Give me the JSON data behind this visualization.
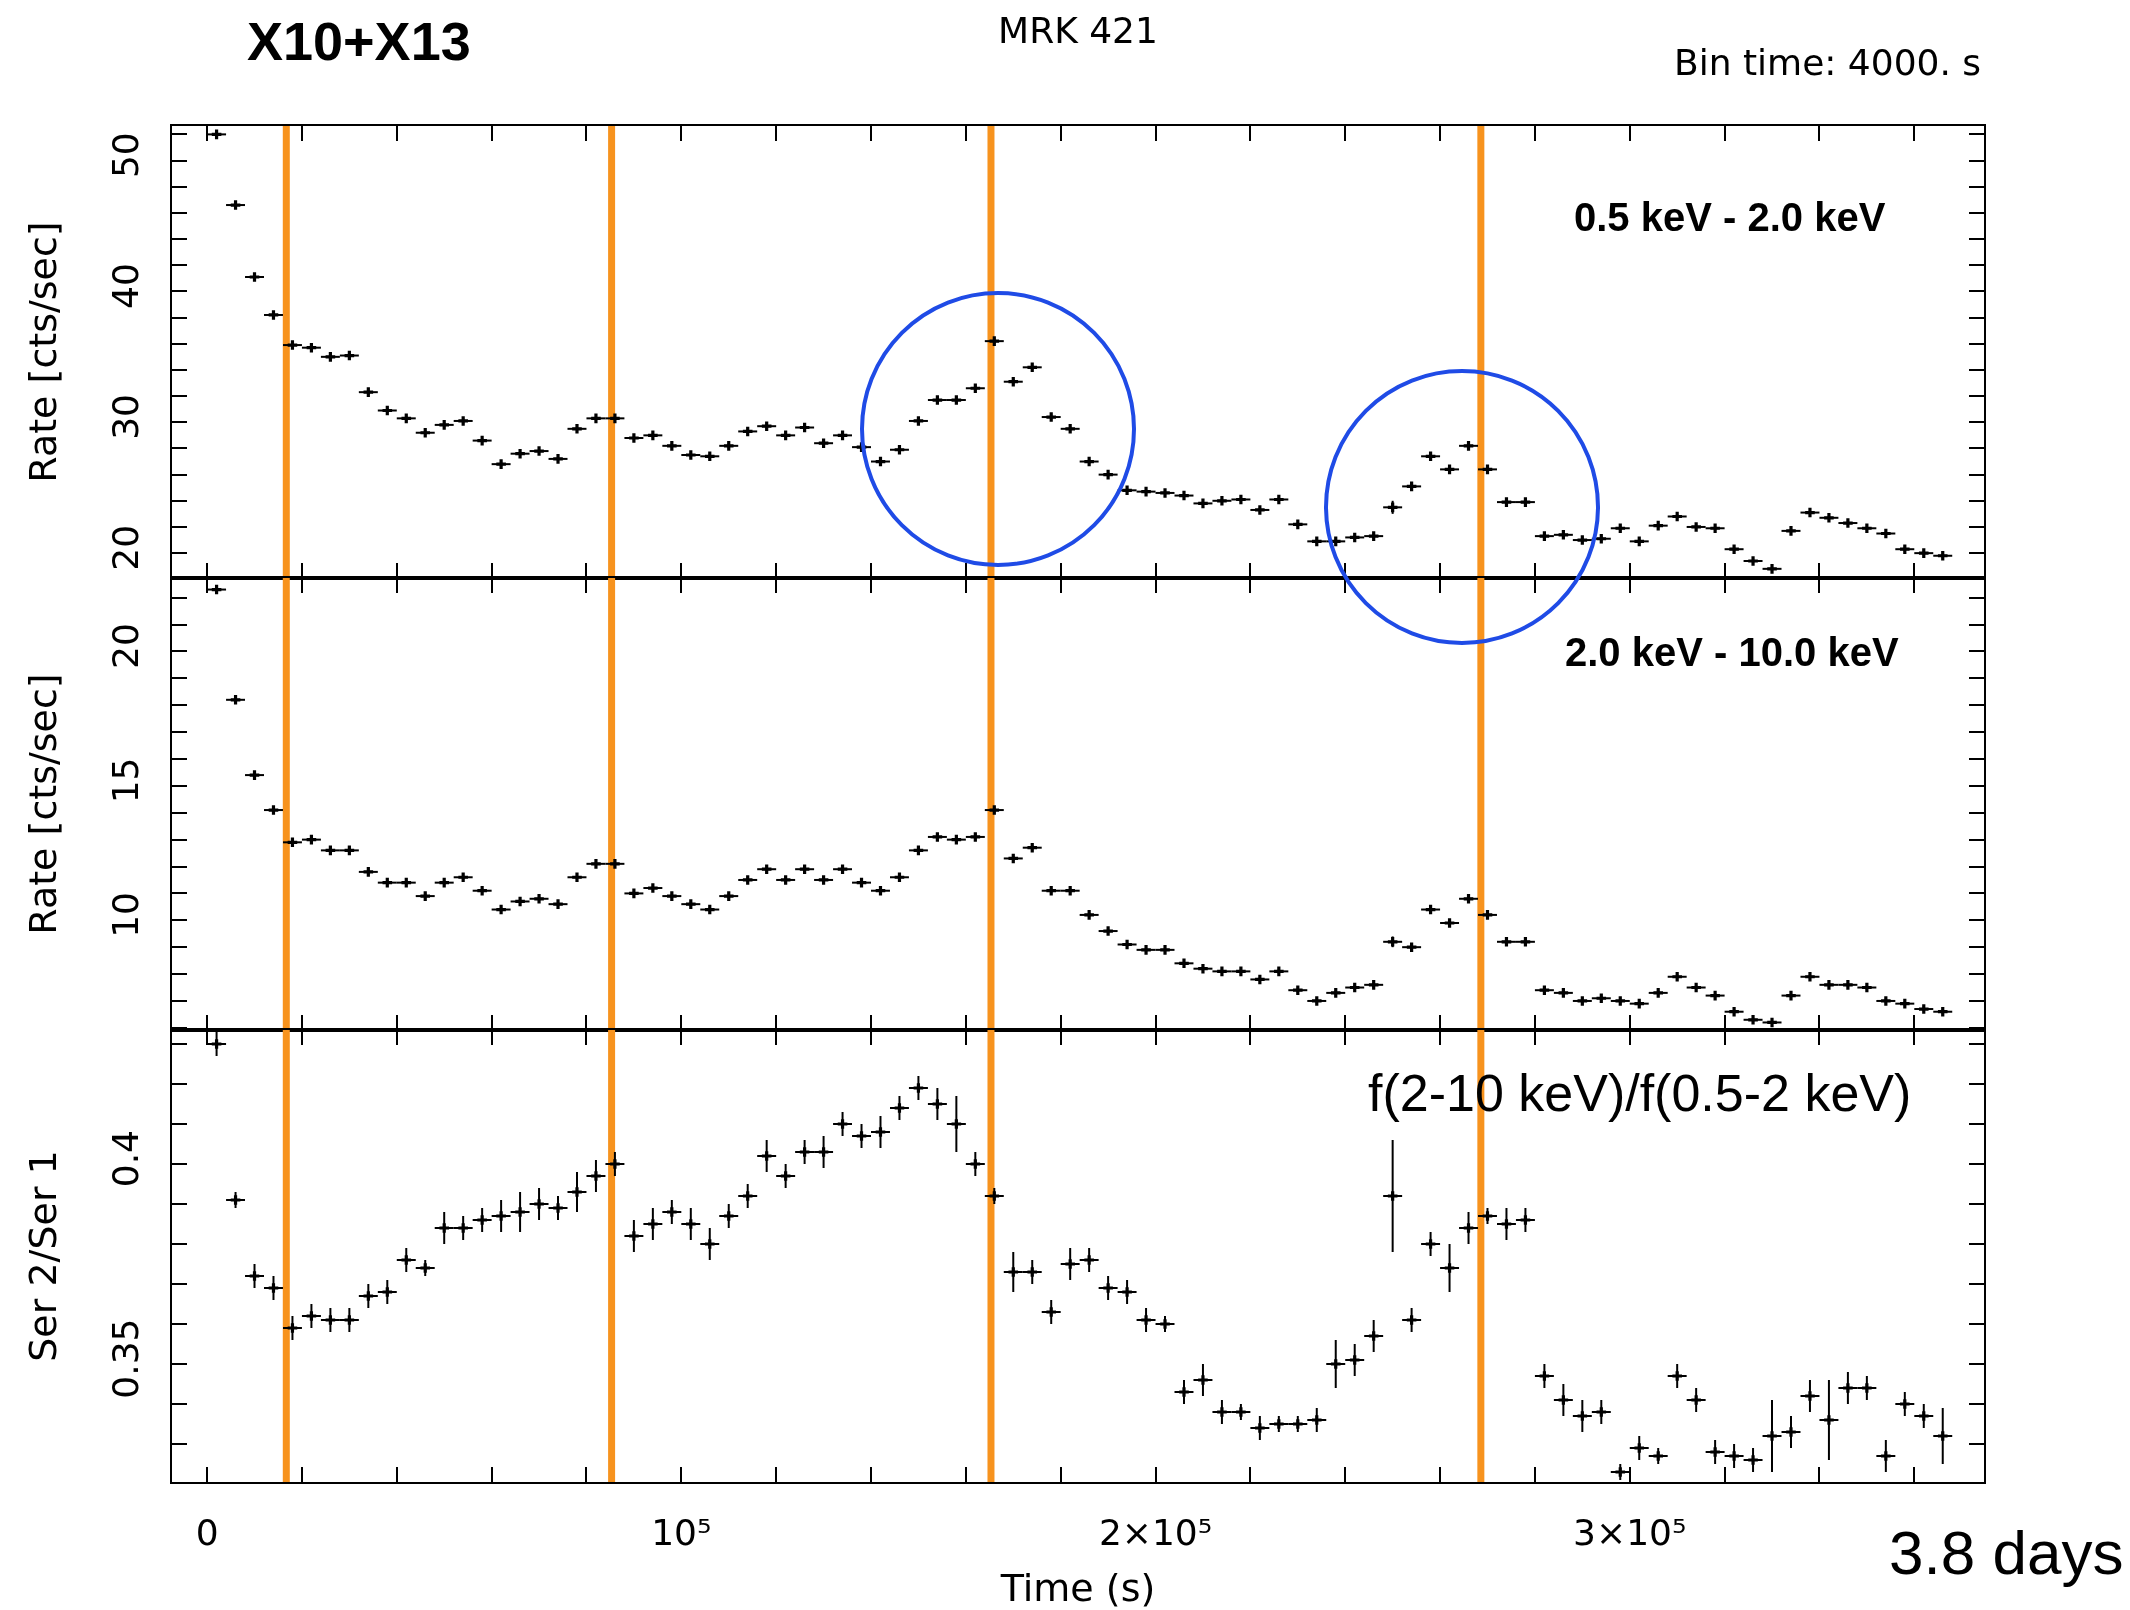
{
  "chart_data": [
    {
      "type": "scatter",
      "title": "MRK 421",
      "ylabel": "Rate [cts/sec]",
      "annotations": [
        "X10+X13",
        "Bin time: 4000. s",
        "0.5 keV - 2.0 keV"
      ],
      "color": "#000000",
      "marker": "cross",
      "tick_labels": "y",
      "xlim": [
        -7400,
        374700
      ],
      "xticks": [
        {
          "value": 0,
          "label": null
        },
        {
          "value": 20000,
          "label": null
        },
        {
          "value": 40000,
          "label": null
        },
        {
          "value": 60000,
          "label": null
        },
        {
          "value": 80000,
          "label": null
        },
        {
          "value": 100000,
          "label": null
        },
        {
          "value": 120000,
          "label": null
        },
        {
          "value": 140000,
          "label": null
        },
        {
          "value": 160000,
          "label": null
        },
        {
          "value": 180000,
          "label": null
        },
        {
          "value": 200000,
          "label": null
        },
        {
          "value": 220000,
          "label": null
        },
        {
          "value": 240000,
          "label": null
        },
        {
          "value": 260000,
          "label": null
        },
        {
          "value": 280000,
          "label": null
        },
        {
          "value": 300000,
          "label": null
        },
        {
          "value": 320000,
          "label": null
        },
        {
          "value": 340000,
          "label": null
        },
        {
          "value": 360000,
          "label": null
        }
      ],
      "ylim": [
        18.1,
        52.64
      ],
      "yticks": [
        20,
        {
          "value": 22,
          "label": null
        },
        {
          "value": 24,
          "label": null
        },
        {
          "value": 26,
          "label": null
        },
        {
          "value": 28,
          "label": null
        },
        30,
        {
          "value": 32,
          "label": null
        },
        {
          "value": 34,
          "label": null
        },
        {
          "value": 36,
          "label": null
        },
        {
          "value": 38,
          "label": null
        },
        40,
        {
          "value": 42,
          "label": null
        },
        {
          "value": 44,
          "label": null
        },
        {
          "value": 46,
          "label": null
        },
        {
          "value": 48,
          "label": null
        },
        50,
        {
          "value": 52,
          "label": null
        }
      ],
      "x": [
        2000,
        6000,
        10000,
        14000,
        18000,
        22000,
        26000,
        30000,
        34000,
        38000,
        42000,
        46000,
        50000,
        54000,
        58000,
        62000,
        66000,
        70000,
        74000,
        78000,
        82000,
        86000,
        90000,
        94000,
        98000,
        102000,
        106000,
        110000,
        114000,
        118000,
        122000,
        126000,
        130000,
        134000,
        138000,
        142000,
        146000,
        150000,
        154000,
        158000,
        162000,
        166000,
        170000,
        174000,
        178000,
        182000,
        186000,
        190000,
        194000,
        198000,
        202000,
        206000,
        210000,
        214000,
        218000,
        222000,
        226000,
        230000,
        234000,
        238000,
        242000,
        246000,
        250000,
        254000,
        258000,
        262000,
        266000,
        270000,
        274000,
        278000,
        282000,
        286000,
        290000,
        294000,
        298000,
        302000,
        306000,
        310000,
        314000,
        318000,
        322000,
        326000,
        330000,
        334000,
        338000,
        342000,
        346000,
        350000,
        354000,
        358000,
        362000,
        366000
      ],
      "values": [
        52.0,
        46.6,
        41.1,
        38.2,
        35.9,
        35.7,
        35.0,
        35.1,
        32.3,
        30.9,
        30.3,
        29.2,
        29.8,
        30.1,
        28.6,
        26.8,
        27.6,
        27.8,
        27.2,
        29.5,
        30.3,
        30.3,
        28.8,
        29.0,
        28.2,
        27.5,
        27.4,
        28.2,
        29.3,
        29.7,
        29.0,
        29.6,
        28.4,
        29.0,
        28.1,
        27.0,
        27.9,
        30.1,
        31.7,
        31.7,
        32.6,
        36.2,
        33.1,
        34.2,
        30.4,
        29.5,
        27.0,
        26.0,
        24.8,
        24.7,
        24.6,
        24.4,
        23.8,
        24.0,
        24.1,
        23.3,
        24.1,
        22.2,
        20.9,
        20.9,
        21.2,
        21.3,
        23.5,
        25.1,
        27.4,
        26.4,
        28.2,
        26.4,
        23.9,
        23.9,
        21.3,
        21.4,
        21.0,
        21.1,
        21.9,
        20.9,
        22.1,
        22.8,
        22.0,
        21.9,
        20.3,
        19.4,
        18.8,
        21.7,
        23.1,
        22.7,
        22.3,
        21.9,
        21.5,
        20.3,
        20.0,
        19.8
      ],
      "errors": [
        0.2,
        0.2,
        0.2,
        0.2,
        0.2,
        0.2,
        0.2,
        0.2,
        0.2,
        0.2,
        0.2,
        0.2,
        0.2,
        0.2,
        0.2,
        0.2,
        0.2,
        0.2,
        0.2,
        0.2,
        0.2,
        0.2,
        0.2,
        0.2,
        0.2,
        0.2,
        0.2,
        0.2,
        0.2,
        0.2,
        0.2,
        0.2,
        0.2,
        0.2,
        0.2,
        0.2,
        0.2,
        0.2,
        0.2,
        0.2,
        0.2,
        0.2,
        0.2,
        0.2,
        0.2,
        0.2,
        0.2,
        0.2,
        0.2,
        0.2,
        0.2,
        0.2,
        0.2,
        0.2,
        0.2,
        0.2,
        0.2,
        0.2,
        0.2,
        0.2,
        0.2,
        0.2,
        0.5,
        0.2,
        0.2,
        0.2,
        0.2,
        0.2,
        0.2,
        0.2,
        0.2,
        0.2,
        0.2,
        0.2,
        0.2,
        0.2,
        0.2,
        0.2,
        0.2,
        0.2,
        0.2,
        0.2,
        0.2,
        0.2,
        0.2,
        0.2,
        0.2,
        0.2,
        0.2,
        0.2,
        0.2,
        0.2
      ],
      "xerrors": [
        2000,
        2000,
        2000,
        2000,
        2000,
        2000,
        2000,
        2000,
        2000,
        2000,
        2000,
        2000,
        2000,
        2000,
        2000,
        2000,
        2000,
        2000,
        2000,
        2000,
        2000,
        2000,
        2000,
        2000,
        2000,
        2000,
        2000,
        2000,
        2000,
        2000,
        2000,
        2000,
        2000,
        2000,
        2000,
        2000,
        2000,
        2000,
        2000,
        2000,
        2000,
        2000,
        2000,
        2000,
        2000,
        2000,
        2000,
        2000,
        2000,
        2000,
        2000,
        2000,
        2000,
        2000,
        2000,
        2000,
        2000,
        2000,
        2000,
        2000,
        2000,
        2000,
        2000,
        2000,
        2000,
        2000,
        2000,
        2000,
        2000,
        2000,
        2000,
        2000,
        2000,
        2000,
        2000,
        2000,
        2000,
        2000,
        2000,
        2000,
        2000,
        2000,
        2000,
        2000,
        2000,
        2000,
        2000,
        2000,
        2000,
        2000,
        2000,
        2000
      ],
      "ref_lines": [
        {
          "axis": "x",
          "value": 16700,
          "color": "#f7931e"
        },
        {
          "axis": "x",
          "value": 85300,
          "color": "#f7931e"
        },
        {
          "axis": "x",
          "value": 165300,
          "color": "#f7931e"
        },
        {
          "axis": "x",
          "value": 268600,
          "color": "#f7931e"
        }
      ]
    },
    {
      "type": "scatter",
      "ylabel": "Rate [cts/sec]",
      "annotations": [
        "2.0 keV - 10.0 keV"
      ],
      "color": "#000000",
      "marker": "cross",
      "tick_labels": "y",
      "xlim": [
        -7400,
        374700
      ],
      "xticks": [
        {
          "value": 0,
          "label": null
        },
        {
          "value": 20000,
          "label": null
        },
        {
          "value": 40000,
          "label": null
        },
        {
          "value": 60000,
          "label": null
        },
        {
          "value": 80000,
          "label": null
        },
        {
          "value": 100000,
          "label": null
        },
        {
          "value": 120000,
          "label": null
        },
        {
          "value": 140000,
          "label": null
        },
        {
          "value": 160000,
          "label": null
        },
        {
          "value": 180000,
          "label": null
        },
        {
          "value": 200000,
          "label": null
        },
        {
          "value": 220000,
          "label": null
        },
        {
          "value": 240000,
          "label": null
        },
        {
          "value": 260000,
          "label": null
        },
        {
          "value": 280000,
          "label": null
        },
        {
          "value": 300000,
          "label": null
        },
        {
          "value": 320000,
          "label": null
        },
        {
          "value": 340000,
          "label": null
        },
        {
          "value": 360000,
          "label": null
        }
      ],
      "ylim": [
        5.92,
        22.73
      ],
      "yticks": [
        {
          "value": 6,
          "label": null
        },
        {
          "value": 7,
          "label": null
        },
        {
          "value": 8,
          "label": null
        },
        {
          "value": 9,
          "label": null
        },
        10,
        {
          "value": 11,
          "label": null
        },
        {
          "value": 12,
          "label": null
        },
        {
          "value": 13,
          "label": null
        },
        {
          "value": 14,
          "label": null
        },
        15,
        {
          "value": 16,
          "label": null
        },
        {
          "value": 17,
          "label": null
        },
        {
          "value": 18,
          "label": null
        },
        {
          "value": 19,
          "label": null
        },
        20,
        {
          "value": 21,
          "label": null
        },
        {
          "value": 22,
          "label": null
        }
      ],
      "x": [
        2000,
        6000,
        10000,
        14000,
        18000,
        22000,
        26000,
        30000,
        34000,
        38000,
        42000,
        46000,
        50000,
        54000,
        58000,
        62000,
        66000,
        70000,
        74000,
        78000,
        82000,
        86000,
        90000,
        94000,
        98000,
        102000,
        106000,
        110000,
        114000,
        118000,
        122000,
        126000,
        130000,
        134000,
        138000,
        142000,
        146000,
        150000,
        154000,
        158000,
        162000,
        166000,
        170000,
        174000,
        178000,
        182000,
        186000,
        190000,
        194000,
        198000,
        202000,
        206000,
        210000,
        214000,
        218000,
        222000,
        226000,
        230000,
        234000,
        238000,
        242000,
        246000,
        250000,
        254000,
        258000,
        262000,
        266000,
        270000,
        274000,
        278000,
        282000,
        286000,
        290000,
        294000,
        298000,
        302000,
        306000,
        310000,
        314000,
        318000,
        322000,
        326000,
        330000,
        334000,
        338000,
        342000,
        346000,
        350000,
        354000,
        358000,
        362000,
        366000
      ],
      "values": [
        22.3,
        18.2,
        15.4,
        14.1,
        12.9,
        13.0,
        12.6,
        12.6,
        11.8,
        11.4,
        11.4,
        10.9,
        11.4,
        11.6,
        11.1,
        10.4,
        10.7,
        10.8,
        10.6,
        11.6,
        12.1,
        12.1,
        11.0,
        11.2,
        10.9,
        10.6,
        10.4,
        10.9,
        11.5,
        11.9,
        11.5,
        11.9,
        11.5,
        11.9,
        11.4,
        11.1,
        11.6,
        12.6,
        13.1,
        13.0,
        13.1,
        14.1,
        12.3,
        12.7,
        11.1,
        11.1,
        10.2,
        9.6,
        9.1,
        8.9,
        8.9,
        8.4,
        8.2,
        8.1,
        8.1,
        7.8,
        8.1,
        7.4,
        7.0,
        7.3,
        7.5,
        7.6,
        9.2,
        9.0,
        10.4,
        9.9,
        10.8,
        10.2,
        9.2,
        9.2,
        7.4,
        7.3,
        7.0,
        7.1,
        7.0,
        6.9,
        7.3,
        7.9,
        7.5,
        7.2,
        6.6,
        6.3,
        6.2,
        7.2,
        7.9,
        7.6,
        7.6,
        7.5,
        7.0,
        6.9,
        6.7,
        6.6
      ],
      "errors": [
        0.1,
        0.1,
        0.1,
        0.1,
        0.1,
        0.1,
        0.1,
        0.1,
        0.1,
        0.1,
        0.1,
        0.1,
        0.1,
        0.1,
        0.1,
        0.1,
        0.1,
        0.1,
        0.1,
        0.1,
        0.1,
        0.1,
        0.1,
        0.1,
        0.1,
        0.1,
        0.1,
        0.1,
        0.1,
        0.1,
        0.1,
        0.1,
        0.1,
        0.1,
        0.1,
        0.1,
        0.1,
        0.1,
        0.1,
        0.1,
        0.1,
        0.1,
        0.1,
        0.1,
        0.1,
        0.1,
        0.1,
        0.1,
        0.1,
        0.1,
        0.1,
        0.1,
        0.1,
        0.1,
        0.1,
        0.1,
        0.1,
        0.1,
        0.1,
        0.1,
        0.1,
        0.1,
        0.2,
        0.1,
        0.1,
        0.1,
        0.1,
        0.1,
        0.1,
        0.1,
        0.1,
        0.1,
        0.1,
        0.1,
        0.1,
        0.1,
        0.1,
        0.1,
        0.1,
        0.1,
        0.1,
        0.1,
        0.1,
        0.1,
        0.1,
        0.1,
        0.1,
        0.1,
        0.1,
        0.1,
        0.1,
        0.1
      ],
      "xerrors": [
        2000,
        2000,
        2000,
        2000,
        2000,
        2000,
        2000,
        2000,
        2000,
        2000,
        2000,
        2000,
        2000,
        2000,
        2000,
        2000,
        2000,
        2000,
        2000,
        2000,
        2000,
        2000,
        2000,
        2000,
        2000,
        2000,
        2000,
        2000,
        2000,
        2000,
        2000,
        2000,
        2000,
        2000,
        2000,
        2000,
        2000,
        2000,
        2000,
        2000,
        2000,
        2000,
        2000,
        2000,
        2000,
        2000,
        2000,
        2000,
        2000,
        2000,
        2000,
        2000,
        2000,
        2000,
        2000,
        2000,
        2000,
        2000,
        2000,
        2000,
        2000,
        2000,
        2000,
        2000,
        2000,
        2000,
        2000,
        2000,
        2000,
        2000,
        2000,
        2000,
        2000,
        2000,
        2000,
        2000,
        2000,
        2000,
        2000,
        2000,
        2000,
        2000,
        2000,
        2000,
        2000,
        2000,
        2000,
        2000,
        2000,
        2000,
        2000,
        2000
      ],
      "ref_lines": [
        {
          "axis": "x",
          "value": 16700,
          "color": "#f7931e"
        },
        {
          "axis": "x",
          "value": 85300,
          "color": "#f7931e"
        },
        {
          "axis": "x",
          "value": 165300,
          "color": "#f7931e"
        },
        {
          "axis": "x",
          "value": 268600,
          "color": "#f7931e"
        }
      ]
    },
    {
      "type": "scatter",
      "xlabel": "Time (s)",
      "ylabel": "Ser 2/Ser 1",
      "annotations": [
        "f(2-10 keV)/f(0.5-2 keV)",
        "3.8 days"
      ],
      "color": "#000000",
      "marker": "cross",
      "xlim": [
        -7400,
        374700
      ],
      "xticks": [
        0,
        {
          "value": 20000,
          "label": null
        },
        {
          "value": 40000,
          "label": null
        },
        {
          "value": 60000,
          "label": null
        },
        {
          "value": 80000,
          "label": null
        },
        {
          "value": 100000,
          "label": "10⁵"
        },
        {
          "value": 120000,
          "label": null
        },
        {
          "value": 140000,
          "label": null
        },
        {
          "value": 160000,
          "label": null
        },
        {
          "value": 180000,
          "label": null
        },
        {
          "value": 200000,
          "label": "2×10⁵"
        },
        {
          "value": 220000,
          "label": null
        },
        {
          "value": 240000,
          "label": null
        },
        {
          "value": 260000,
          "label": null
        },
        {
          "value": 280000,
          "label": null
        },
        {
          "value": 300000,
          "label": "3×10⁵"
        },
        {
          "value": 320000,
          "label": null
        },
        {
          "value": 340000,
          "label": null
        },
        {
          "value": 360000,
          "label": null
        }
      ],
      "ylim": [
        0.3205,
        0.4335
      ],
      "yticks": [
        {
          "value": 0.33,
          "label": null
        },
        {
          "value": 0.34,
          "label": null
        },
        0.35,
        {
          "value": 0.36,
          "label": null
        },
        {
          "value": 0.37,
          "label": null
        },
        {
          "value": 0.38,
          "label": null
        },
        {
          "value": 0.39,
          "label": null
        },
        0.4,
        {
          "value": 0.41,
          "label": null
        },
        {
          "value": 0.42,
          "label": null
        },
        {
          "value": 0.43,
          "label": null
        }
      ],
      "x": [
        2000,
        6000,
        10000,
        14000,
        18000,
        22000,
        26000,
        30000,
        34000,
        38000,
        42000,
        46000,
        50000,
        54000,
        58000,
        62000,
        66000,
        70000,
        74000,
        78000,
        82000,
        86000,
        90000,
        94000,
        98000,
        102000,
        106000,
        110000,
        114000,
        118000,
        122000,
        126000,
        130000,
        134000,
        138000,
        142000,
        146000,
        150000,
        154000,
        158000,
        162000,
        166000,
        170000,
        174000,
        178000,
        182000,
        186000,
        190000,
        194000,
        198000,
        202000,
        206000,
        210000,
        214000,
        218000,
        222000,
        226000,
        230000,
        234000,
        238000,
        242000,
        246000,
        250000,
        254000,
        258000,
        262000,
        266000,
        270000,
        274000,
        278000,
        282000,
        286000,
        290000,
        294000,
        298000,
        302000,
        306000,
        310000,
        314000,
        318000,
        322000,
        326000,
        330000,
        334000,
        338000,
        342000,
        346000,
        350000,
        354000,
        358000,
        362000,
        366000
      ],
      "values": [
        0.43,
        0.391,
        0.372,
        0.369,
        0.359,
        0.362,
        0.361,
        0.361,
        0.367,
        0.368,
        0.376,
        0.374,
        0.384,
        0.384,
        0.386,
        0.387,
        0.388,
        0.39,
        0.389,
        0.393,
        0.397,
        0.4,
        0.382,
        0.385,
        0.388,
        0.385,
        0.38,
        0.387,
        0.392,
        0.402,
        0.397,
        0.403,
        0.403,
        0.41,
        0.407,
        0.408,
        0.414,
        0.419,
        0.415,
        0.41,
        0.4,
        0.392,
        0.373,
        0.373,
        0.363,
        0.375,
        0.376,
        0.369,
        0.368,
        0.361,
        0.36,
        0.343,
        0.346,
        0.338,
        0.338,
        0.334,
        0.335,
        0.335,
        0.336,
        0.35,
        0.351,
        0.357,
        0.392,
        0.361,
        0.38,
        0.374,
        0.384,
        0.387,
        0.385,
        0.386,
        0.347,
        0.341,
        0.337,
        0.338,
        0.323,
        0.329,
        0.327,
        0.347,
        0.341,
        0.328,
        0.327,
        0.326,
        0.332,
        0.333,
        0.342,
        0.336,
        0.344,
        0.344,
        0.327,
        0.34,
        0.337,
        0.332
      ],
      "errors": [
        0.003,
        0.002,
        0.003,
        0.003,
        0.003,
        0.003,
        0.003,
        0.003,
        0.003,
        0.003,
        0.003,
        0.002,
        0.004,
        0.003,
        0.003,
        0.004,
        0.005,
        0.004,
        0.003,
        0.005,
        0.004,
        0.003,
        0.004,
        0.004,
        0.003,
        0.004,
        0.004,
        0.003,
        0.003,
        0.004,
        0.003,
        0.003,
        0.004,
        0.003,
        0.003,
        0.004,
        0.003,
        0.003,
        0.004,
        0.007,
        0.003,
        0.002,
        0.005,
        0.003,
        0.003,
        0.004,
        0.003,
        0.003,
        0.003,
        0.003,
        0.002,
        0.003,
        0.004,
        0.003,
        0.002,
        0.003,
        0.002,
        0.002,
        0.003,
        0.006,
        0.004,
        0.004,
        0.014,
        0.003,
        0.003,
        0.006,
        0.004,
        0.002,
        0.004,
        0.003,
        0.003,
        0.004,
        0.004,
        0.003,
        0.002,
        0.003,
        0.002,
        0.003,
        0.003,
        0.003,
        0.003,
        0.003,
        0.009,
        0.004,
        0.004,
        0.01,
        0.004,
        0.003,
        0.004,
        0.003,
        0.003,
        0.007
      ],
      "xerrors": [
        2000,
        2000,
        2000,
        2000,
        2000,
        2000,
        2000,
        2000,
        2000,
        2000,
        2000,
        2000,
        2000,
        2000,
        2000,
        2000,
        2000,
        2000,
        2000,
        2000,
        2000,
        2000,
        2000,
        2000,
        2000,
        2000,
        2000,
        2000,
        2000,
        2000,
        2000,
        2000,
        2000,
        2000,
        2000,
        2000,
        2000,
        2000,
        2000,
        2000,
        2000,
        2000,
        2000,
        2000,
        2000,
        2000,
        2000,
        2000,
        2000,
        2000,
        2000,
        2000,
        2000,
        2000,
        2000,
        2000,
        2000,
        2000,
        2000,
        2000,
        2000,
        2000,
        2000,
        2000,
        2000,
        2000,
        2000,
        2000,
        2000,
        2000,
        2000,
        2000,
        2000,
        2000,
        2000,
        2000,
        2000,
        2000,
        2000,
        2000,
        2000,
        2000,
        2000,
        2000,
        2000,
        2000,
        2000,
        2000,
        2000,
        2000,
        2000,
        2000
      ],
      "ref_lines": [
        {
          "axis": "x",
          "value": 16700,
          "color": "#f7931e"
        },
        {
          "axis": "x",
          "value": 85300,
          "color": "#f7931e"
        },
        {
          "axis": "x",
          "value": 165300,
          "color": "#f7931e"
        },
        {
          "axis": "x",
          "value": 268600,
          "color": "#f7931e"
        }
      ]
    }
  ]
}
